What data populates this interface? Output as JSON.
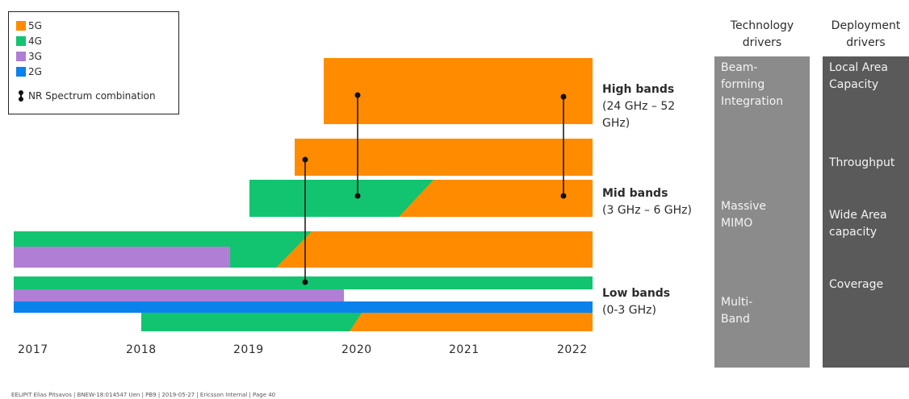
{
  "legend": {
    "items": [
      {
        "label": "5G",
        "color": "#ff8c00"
      },
      {
        "label": "4G",
        "color": "#12c470"
      },
      {
        "label": "3G",
        "color": "#b07ed4"
      },
      {
        "label": "2G",
        "color": "#0a82ec"
      }
    ],
    "combination_label": "NR Spectrum combination"
  },
  "band_labels": {
    "high": {
      "title": "High bands",
      "range_line1": "(24 GHz – 52",
      "range_line2": "GHz)"
    },
    "mid": {
      "title": "Mid bands",
      "range": "(3 GHz – 6 GHz)"
    },
    "low": {
      "title": "Low bands",
      "range": "(0-3 GHz)"
    }
  },
  "years": [
    "2017",
    "2018",
    "2019",
    "2020",
    "2021",
    "2022"
  ],
  "technology_drivers": {
    "header_line1": "Technology",
    "header_line2": "drivers",
    "items": [
      {
        "line1": "Beam-",
        "line2": "forming",
        "line3": "Integration"
      },
      {
        "line1": "Massive",
        "line2": "MIMO"
      },
      {
        "line1": "Multi-",
        "line2": "Band"
      }
    ],
    "color": "#8b8b8b"
  },
  "deployment_drivers": {
    "header_line1": "Deployment",
    "header_line2": "drivers",
    "items": [
      {
        "line1": "Local Area",
        "line2": "Capacity"
      },
      {
        "line1": "Throughput"
      },
      {
        "line1": "Wide Area",
        "line2": "capacity"
      },
      {
        "line1": "Coverage"
      }
    ],
    "color": "#5a5a5a"
  },
  "footer": "EELIPIT Elias Pitsavos | BNEW-18:014547 Uen | PB9 | 2019-05-27 | Ericsson Internal | Page 40"
}
